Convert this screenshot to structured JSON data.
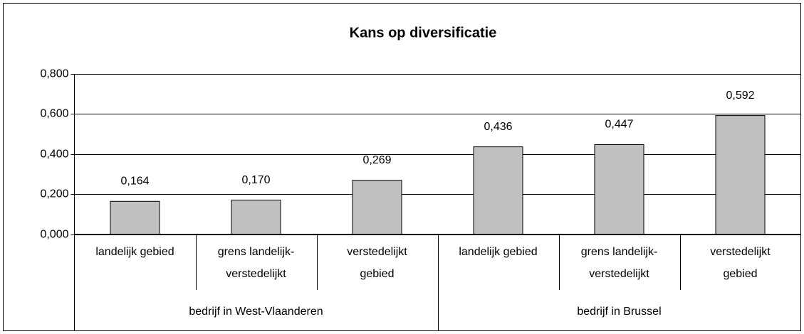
{
  "chart_data": {
    "type": "bar",
    "title": "Kans op diversificatie",
    "groups": [
      {
        "name": "bedrijf in West-Vlaanderen",
        "categories": [
          [
            "landelijk gebied"
          ],
          [
            "grens landelijk-",
            "verstedelijkt"
          ],
          [
            "verstedelijkt",
            "gebied"
          ]
        ]
      },
      {
        "name": "bedrijf in Brussel",
        "categories": [
          [
            "landelijk gebied"
          ],
          [
            "grens landelijk-",
            "verstedelijkt"
          ],
          [
            "verstedelijkt",
            "gebied"
          ]
        ]
      }
    ],
    "values": [
      0.164,
      0.17,
      0.269,
      0.436,
      0.447,
      0.592
    ],
    "value_labels": [
      "0,164",
      "0,170",
      "0,269",
      "0,436",
      "0,447",
      "0,592"
    ],
    "color": "#c0c0c0",
    "ylim": [
      0,
      0.8
    ],
    "yticks": [
      {
        "value": 0,
        "label": "0,000"
      },
      {
        "value": 0.2,
        "label": "0,200"
      },
      {
        "value": 0.4,
        "label": "0,400"
      },
      {
        "value": 0.6,
        "label": "0,600"
      },
      {
        "value": 0.8,
        "label": "0,800"
      }
    ],
    "grid": true
  }
}
